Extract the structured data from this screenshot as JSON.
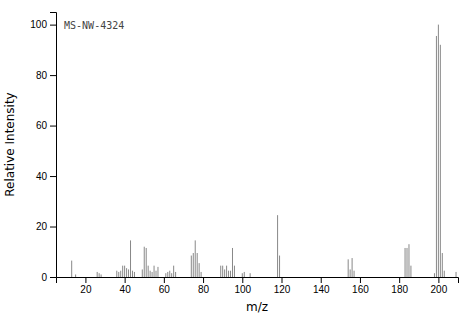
{
  "chart_data": {
    "type": "stem",
    "title": "MS-NW-4324",
    "xlabel": "m/z",
    "ylabel": "Relative Intensity",
    "x": [
      13,
      15,
      26,
      27,
      28,
      36,
      37,
      38,
      39,
      40,
      41,
      42,
      43,
      44,
      45,
      49,
      50,
      51,
      52,
      53,
      54,
      55,
      56,
      57,
      61,
      62,
      63,
      64,
      65,
      66,
      74,
      75,
      76,
      77,
      78,
      79,
      89,
      90,
      91,
      92,
      93,
      94,
      95,
      96,
      100,
      101,
      104,
      118,
      119,
      154,
      155,
      156,
      157,
      183,
      184,
      185,
      186,
      198,
      199,
      200,
      201,
      202,
      203,
      209
    ],
    "values": [
      6.5,
      1.0,
      2.0,
      1.5,
      1.0,
      2.5,
      2.0,
      2.5,
      4.5,
      4.5,
      3.5,
      3.0,
      14.5,
      2.5,
      2.0,
      3.0,
      12.0,
      11.5,
      4.5,
      2.5,
      2.0,
      4.5,
      2.5,
      4.0,
      1.5,
      2.0,
      2.5,
      1.5,
      4.5,
      2.0,
      8.5,
      9.5,
      14.5,
      9.5,
      5.5,
      2.0,
      4.5,
      4.5,
      3.0,
      4.5,
      2.5,
      2.5,
      11.5,
      4.5,
      1.5,
      2.0,
      1.5,
      24.5,
      8.5,
      7.0,
      3.0,
      7.5,
      2.5,
      11.5,
      11.5,
      13.0,
      4.5,
      1.5,
      95.5,
      100.0,
      92.0,
      9.5,
      2.5,
      2.0
    ],
    "color": "#888888",
    "xlim": [
      5,
      210
    ],
    "ylim": [
      0,
      105
    ],
    "xticks": [
      20,
      40,
      60,
      80,
      100,
      120,
      140,
      160,
      180,
      200
    ],
    "yticks": [
      0,
      20,
      40,
      60,
      80,
      100
    ],
    "grid": false
  }
}
